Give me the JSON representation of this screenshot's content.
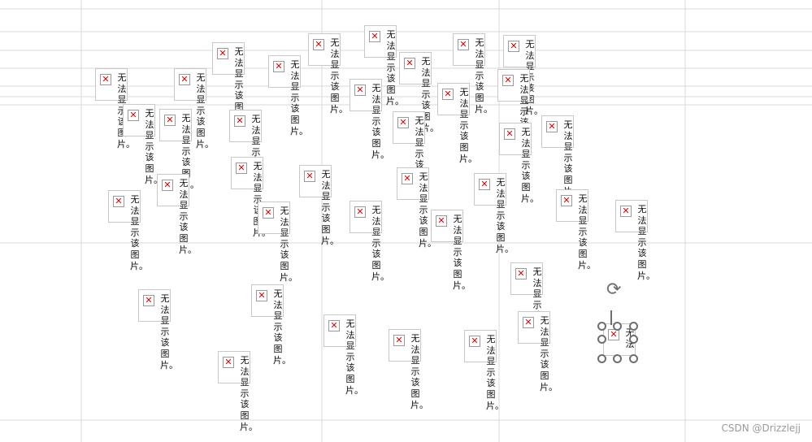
{
  "placeholder": {
    "text": "无法显示该图片。",
    "icon": "broken-image-icon"
  },
  "watermark": "CSDN @Drizzlejj",
  "colors": {
    "grid": "#d9d9d9",
    "error_mark": "#dd0000"
  }
}
